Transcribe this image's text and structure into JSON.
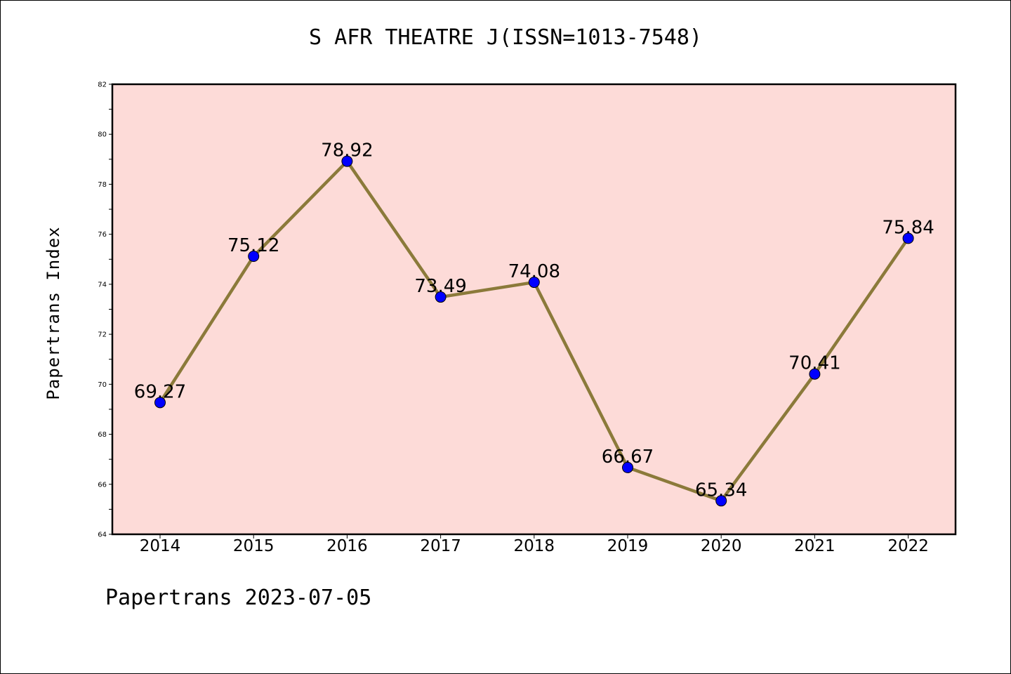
{
  "title": "S AFR THEATRE J(ISSN=1013-7548)",
  "footer": "Papertrans 2023-07-05",
  "colors": {
    "plot_background": "#fddbd8",
    "line": "#8b7a3a",
    "marker": "#0000ff"
  },
  "chart_data": {
    "type": "line",
    "title": "S AFR THEATRE J(ISSN=1013-7548)",
    "xlabel": "",
    "ylabel": "Papertrans Index",
    "categories": [
      "2014",
      "2015",
      "2016",
      "2017",
      "2018",
      "2019",
      "2020",
      "2021",
      "2022"
    ],
    "values": [
      69.27,
      75.12,
      78.92,
      73.49,
      74.08,
      66.67,
      65.34,
      70.41,
      75.84
    ],
    "data_labels": [
      "69.27",
      "75.12",
      "78.92",
      "73.49",
      "74.08",
      "66.67",
      "65.34",
      "70.41",
      "75.84"
    ],
    "ylim": [
      64,
      82
    ],
    "yticks": [
      64,
      66,
      68,
      70,
      72,
      74,
      76,
      78,
      80,
      82
    ],
    "grid": false,
    "legend": "none"
  }
}
